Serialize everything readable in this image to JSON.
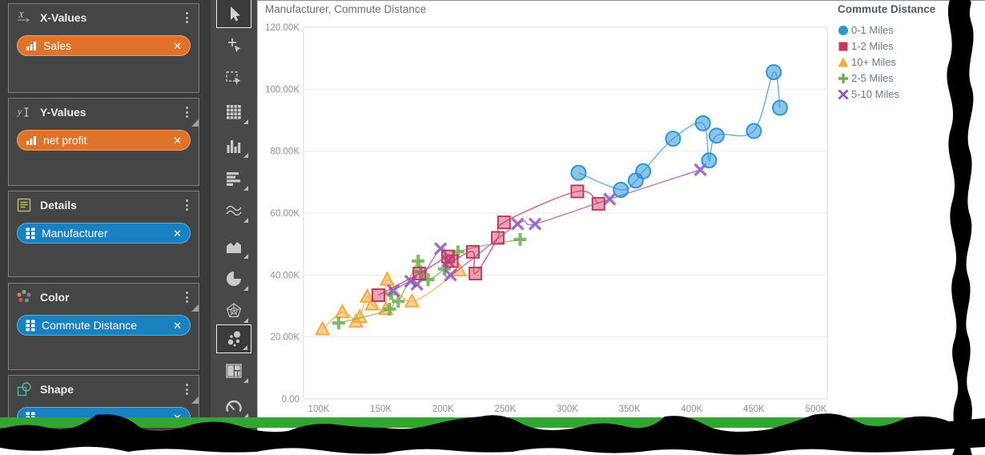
{
  "sidebar": {
    "panels": [
      {
        "title": "X-Values",
        "icon": "x-axis",
        "grip": false,
        "chips": [
          {
            "label": "Sales",
            "color": "orange",
            "icon": "measure"
          }
        ]
      },
      {
        "title": "Y-Values",
        "icon": "y-axis",
        "grip": true,
        "chips": [
          {
            "label": "net profit",
            "color": "orange",
            "icon": "measure"
          }
        ]
      },
      {
        "title": "Details",
        "icon": "details",
        "grip": false,
        "chips": [
          {
            "label": "Manufacturer",
            "color": "blue",
            "icon": "dimension"
          }
        ]
      },
      {
        "title": "Color",
        "icon": "color",
        "grip": true,
        "chips": [
          {
            "label": "Commute Distance",
            "color": "blue",
            "icon": "dimension"
          }
        ]
      },
      {
        "title": "Shape",
        "icon": "shape",
        "grip": true,
        "chips": [
          {
            "label": "",
            "color": "blue",
            "icon": "dimension",
            "cut_off": true
          }
        ]
      }
    ]
  },
  "toolbar": {
    "tools": [
      {
        "name": "pointer",
        "selected": true,
        "menu": false
      },
      {
        "name": "add-point",
        "selected": false,
        "menu": false
      },
      {
        "name": "marquee-select",
        "selected": false,
        "menu": false
      },
      {
        "name": "grid",
        "selected": false,
        "menu": true
      },
      {
        "name": "column-chart",
        "selected": false,
        "menu": true
      },
      {
        "name": "bar-chart",
        "selected": false,
        "menu": true
      },
      {
        "name": "line-chart",
        "selected": false,
        "menu": true
      },
      {
        "name": "area-chart",
        "selected": false,
        "menu": true
      },
      {
        "name": "pie-chart",
        "selected": false,
        "menu": true
      },
      {
        "name": "radar-chart",
        "selected": false,
        "menu": true
      },
      {
        "name": "scatter-chart",
        "selected": true,
        "menu": true
      },
      {
        "name": "treemap",
        "selected": false,
        "menu": true
      },
      {
        "name": "gauge",
        "selected": false,
        "menu": true
      }
    ]
  },
  "chart": {
    "title": "Manufacturer, Commute Distance"
  },
  "legend": {
    "title": "Commute Distance",
    "items": [
      {
        "label": "0-1 Miles",
        "marker": "circle",
        "color": "#2e96d4"
      },
      {
        "label": "1-2 Miles",
        "marker": "square",
        "color": "#c8375e"
      },
      {
        "label": "10+ Miles",
        "marker": "triangle",
        "color": "#f3ab3f"
      },
      {
        "label": "2-5 Miles",
        "marker": "plus",
        "color": "#6fae54"
      },
      {
        "label": "5-10 Miles",
        "marker": "x",
        "color": "#9058c0"
      }
    ]
  },
  "chart_data": {
    "type": "scatter",
    "title": "Manufacturer, Commute Distance",
    "x_field": "Sales",
    "y_field": "net profit",
    "units": "thousands",
    "xlim": [
      100,
      500
    ],
    "ylim": [
      0,
      120
    ],
    "grid": "horizontal",
    "legend_position": "top-right",
    "x_ticks": [
      {
        "label": "100K",
        "value": 100
      },
      {
        "label": "150K",
        "value": 150
      },
      {
        "label": "200K",
        "value": 200
      },
      {
        "label": "250K",
        "value": 250
      },
      {
        "label": "300K",
        "value": 300
      },
      {
        "label": "350K",
        "value": 350
      },
      {
        "label": "400K",
        "value": 400
      },
      {
        "label": "450K",
        "value": 450
      },
      {
        "label": "500K",
        "value": 500
      }
    ],
    "y_ticks": [
      {
        "label": "0.00",
        "value": 0
      },
      {
        "label": "20.00K",
        "value": 20
      },
      {
        "label": "40.00K",
        "value": 40
      },
      {
        "label": "60.00K",
        "value": 60
      },
      {
        "label": "80.00K",
        "value": 80
      },
      {
        "label": "100.00K",
        "value": 100
      },
      {
        "label": "120.00K",
        "value": 120
      }
    ],
    "series": [
      {
        "name": "0-1 Miles",
        "marker": "circle",
        "color": "#2e96d4",
        "line_color": "#4ba1dc",
        "points": [
          [
            309,
            73
          ],
          [
            343,
            67.5
          ],
          [
            355,
            70.5
          ],
          [
            361,
            73.5
          ],
          [
            385,
            84
          ],
          [
            409,
            89
          ],
          [
            414,
            77
          ],
          [
            420,
            85
          ],
          [
            450,
            86.5
          ],
          [
            466,
            105.5
          ],
          [
            471,
            94
          ]
        ]
      },
      {
        "name": "1-2 Miles",
        "marker": "square",
        "color": "#c8375e",
        "line_color": "#d23a5e",
        "points": [
          [
            148,
            33.5
          ],
          [
            181,
            40.5
          ],
          [
            204,
            46
          ],
          [
            207,
            44.5
          ],
          [
            224,
            47.5
          ],
          [
            226,
            40.5
          ],
          [
            244,
            52
          ],
          [
            249,
            57
          ],
          [
            308,
            67
          ],
          [
            325,
            63
          ]
        ]
      },
      {
        "name": "10+ Miles",
        "marker": "triangle",
        "color": "#f3ab3f",
        "line_color": "#f4b04e",
        "points": [
          [
            103,
            22.5
          ],
          [
            119,
            28
          ],
          [
            130,
            25
          ],
          [
            133,
            26.5
          ],
          [
            139,
            33
          ],
          [
            143,
            30.5
          ],
          [
            154,
            29
          ],
          [
            155,
            38.5
          ],
          [
            175,
            31.5
          ],
          [
            213,
            41.5
          ]
        ]
      },
      {
        "name": "2-5 Miles",
        "marker": "plus",
        "color": "#6fae54",
        "line_color": "#83b368",
        "points": [
          [
            116,
            24.5
          ],
          [
            157,
            29
          ],
          [
            158,
            34
          ],
          [
            164,
            31.5
          ],
          [
            180,
            44.5
          ],
          [
            182,
            41
          ],
          [
            188,
            38.5
          ],
          [
            201,
            42
          ],
          [
            212,
            47.5
          ],
          [
            262,
            51.5
          ]
        ]
      },
      {
        "name": "5-10 Miles",
        "marker": "x",
        "color": "#9058c0",
        "line_color": "#a05ecb",
        "points": [
          [
            160,
            35
          ],
          [
            174,
            38
          ],
          [
            179,
            37
          ],
          [
            198,
            48.5
          ],
          [
            204,
            44.5
          ],
          [
            206,
            40
          ],
          [
            260,
            56.5
          ],
          [
            274,
            56.5
          ],
          [
            334,
            64.5
          ],
          [
            407,
            74
          ]
        ]
      }
    ]
  },
  "colors": {
    "chip_orange": "#e0732c",
    "chip_orange_border": "#f49b62",
    "chip_blue": "#1881c2",
    "chip_blue_border": "#57aede",
    "green_strip": "#33a532",
    "sidebar_bg": "#3a3a3a",
    "toolbar_bg": "#484848"
  }
}
